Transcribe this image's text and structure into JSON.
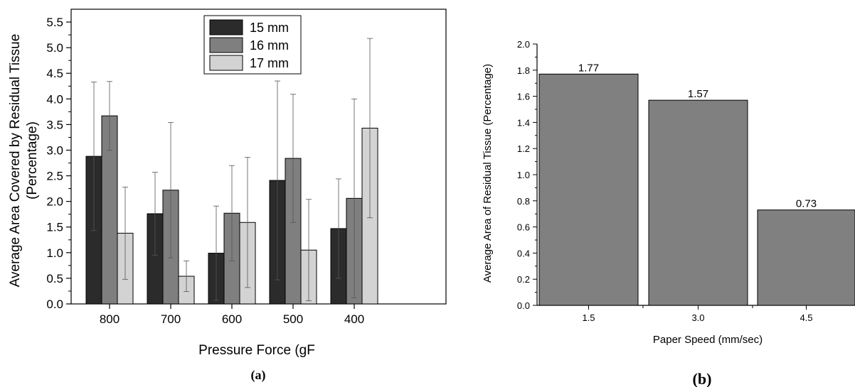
{
  "chart_data": [
    {
      "type": "bar",
      "panel_label": "(a)",
      "title": "",
      "xlabel": "Pressure Force (gF",
      "ylabel_line1": "Average Area Covered by Residual Tissue",
      "ylabel_line2": "(Percentage)",
      "categories": [
        "800",
        "700",
        "600",
        "500",
        "400"
      ],
      "ylim": [
        0,
        5.75
      ],
      "yticks": [
        "0.0",
        "0.5",
        "1.0",
        "1.5",
        "2.0",
        "2.5",
        "3.0",
        "3.5",
        "4.0",
        "4.5",
        "5.0",
        "5.5"
      ],
      "legend_position": "top-center",
      "series": [
        {
          "name": "15 mm",
          "color": "#2b2b2b",
          "values": [
            2.88,
            1.76,
            0.99,
            2.41,
            1.47
          ],
          "error_low": [
            1.43,
            0.95,
            0.07,
            0.47,
            0.5
          ],
          "error_high": [
            4.33,
            2.57,
            1.91,
            4.35,
            2.44
          ]
        },
        {
          "name": "16 mm",
          "color": "#7f7f7f",
          "values": [
            3.67,
            2.22,
            1.77,
            2.84,
            2.06
          ],
          "error_low": [
            3.0,
            0.9,
            0.84,
            1.59,
            0.12
          ],
          "error_high": [
            4.34,
            3.54,
            2.7,
            4.09,
            4.0
          ]
        },
        {
          "name": "17 mm",
          "color": "#d3d3d3",
          "values": [
            1.38,
            0.54,
            1.59,
            1.05,
            3.43
          ],
          "error_low": [
            0.48,
            0.24,
            0.32,
            0.06,
            1.68
          ],
          "error_high": [
            2.28,
            0.84,
            2.86,
            2.04,
            5.18
          ]
        }
      ]
    },
    {
      "type": "bar",
      "panel_label": "(b)",
      "title": "",
      "xlabel": "Paper Speed (mm/sec)",
      "ylabel": "Average Area of Residual Tissue (Percentage)",
      "categories": [
        "1.5",
        "3.0",
        "4.5"
      ],
      "values": [
        1.77,
        1.57,
        0.73
      ],
      "data_labels": [
        "1.77",
        "1.57",
        "0.73"
      ],
      "ylim": [
        0,
        2.0
      ],
      "yticks": [
        "0.0",
        "0.2",
        "0.4",
        "0.6",
        "0.8",
        "1.0",
        "1.2",
        "1.4",
        "1.6",
        "1.8",
        "2.0"
      ],
      "bar_color": "#808080"
    }
  ]
}
